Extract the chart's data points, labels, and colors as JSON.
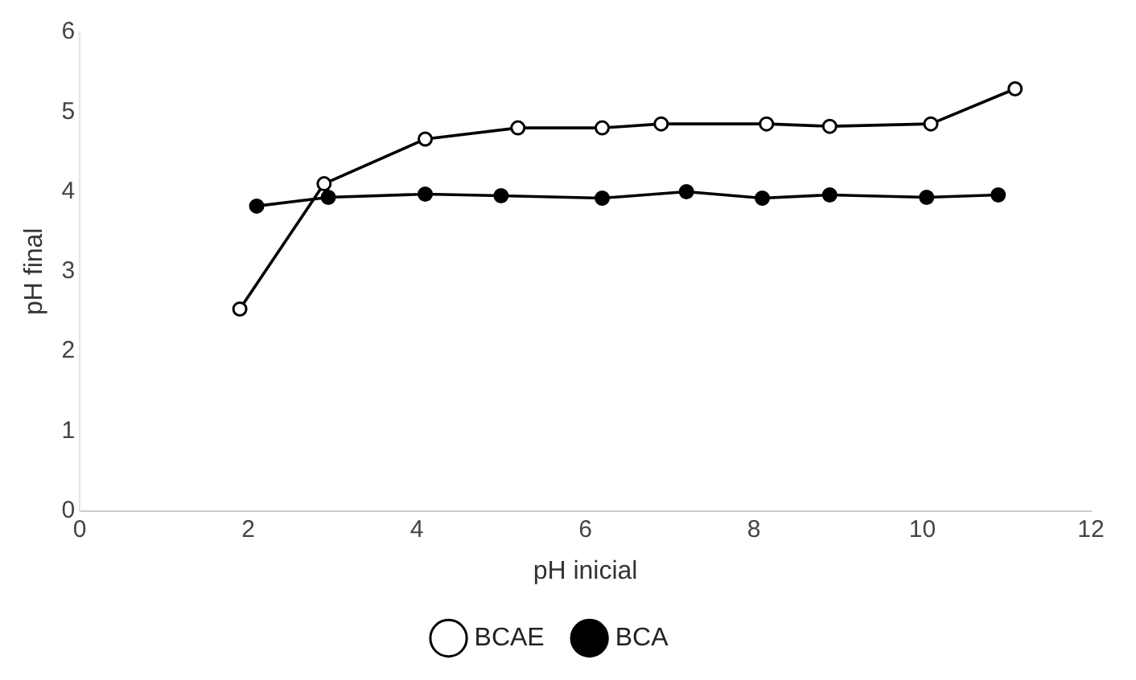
{
  "chart_data": {
    "type": "line",
    "xlabel": "pH inicial",
    "ylabel": "pH final",
    "xlim": [
      0,
      12
    ],
    "xticks": [
      0,
      2,
      4,
      6,
      8,
      10,
      12
    ],
    "ylim": [
      0,
      6
    ],
    "yticks": [
      0,
      1,
      2,
      3,
      4,
      5,
      6
    ],
    "grid": false,
    "legend": "bottom",
    "marker": "circle",
    "line_style": "solid",
    "series": [
      {
        "name": "BCAE",
        "color": "#000000",
        "x": [
          1.9,
          2.9,
          4.1,
          5.2,
          6.2,
          6.9,
          8.15,
          8.9,
          10.1,
          11.1
        ],
        "values": [
          2.53,
          4.1,
          4.66,
          4.8,
          4.8,
          4.85,
          4.85,
          4.82,
          4.85,
          5.29
        ]
      },
      {
        "name": "BCA",
        "color": "#000000",
        "x": [
          2.1,
          2.95,
          4.1,
          5.0,
          6.2,
          7.2,
          8.1,
          8.9,
          10.05,
          10.9
        ],
        "values": [
          3.82,
          3.93,
          3.97,
          3.95,
          3.92,
          4.0,
          3.92,
          3.96,
          3.93,
          3.96
        ]
      }
    ]
  }
}
